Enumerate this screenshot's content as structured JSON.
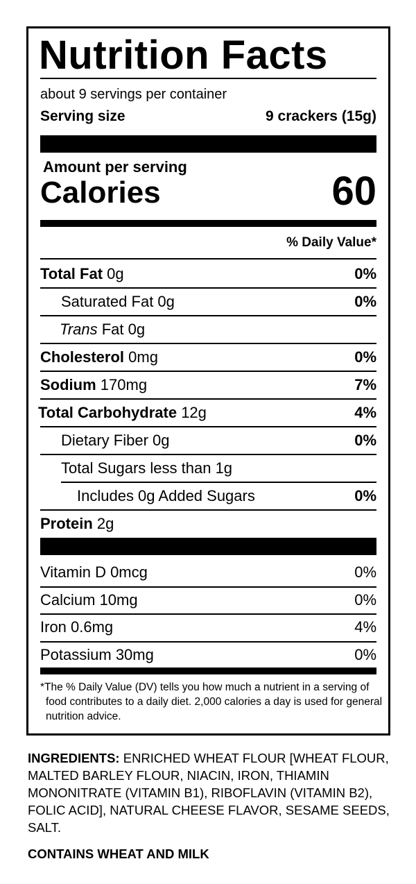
{
  "title": "Nutrition Facts",
  "servings": "about 9 servings per container",
  "serving_size": {
    "label": "Serving size",
    "value": "9 crackers (15g)"
  },
  "amount_per_serving": "Amount per serving",
  "calories": {
    "label": "Calories",
    "value": "60"
  },
  "dv_header": "% Daily Value*",
  "nutrients": [
    {
      "name": "Total Fat",
      "amount": "0g",
      "dv": "0%"
    },
    {
      "name": "Saturated Fat 0g",
      "dv": "0%"
    },
    {
      "italic": "Trans",
      "name": "Fat 0g"
    },
    {
      "name": "Cholesterol",
      "amount": "0mg",
      "dv": "0%"
    },
    {
      "name": "Sodium",
      "amount": "170mg",
      "dv": "7%"
    },
    {
      "name": "Total Carbohydrate",
      "amount": "12g",
      "dv": "4%"
    },
    {
      "name": "Dietary Fiber 0g",
      "dv": "0%"
    },
    {
      "name": "Total Sugars less than 1g"
    },
    {
      "name": "Includes 0g Added Sugars",
      "dv": "0%"
    },
    {
      "name": "Protein",
      "amount": "2g"
    }
  ],
  "vitamins": [
    {
      "name": "Vitamin D 0mcg",
      "dv": "0%"
    },
    {
      "name": "Calcium 10mg",
      "dv": "0%"
    },
    {
      "name": "Iron 0.6mg",
      "dv": "4%"
    },
    {
      "name": "Potassium 30mg",
      "dv": "0%"
    }
  ],
  "footnote": "*The % Daily Value (DV) tells you how much a nutrient in a serving of food contributes to a daily diet. 2,000 calories a day is used for general nutrition advice.",
  "ingredients": {
    "label": "INGREDIENTS:",
    "text": "ENRICHED WHEAT FLOUR [WHEAT FLOUR, MALTED BARLEY FLOUR, NIACIN, IRON, THIAMIN MONONITRATE (VITAMIN B1), RIBOFLAVIN (VITAMIN B2), FOLIC ACID], NATURAL CHEESE FLAVOR, SESAME SEEDS, SALT."
  },
  "contains": "CONTAINS WHEAT AND MILK"
}
